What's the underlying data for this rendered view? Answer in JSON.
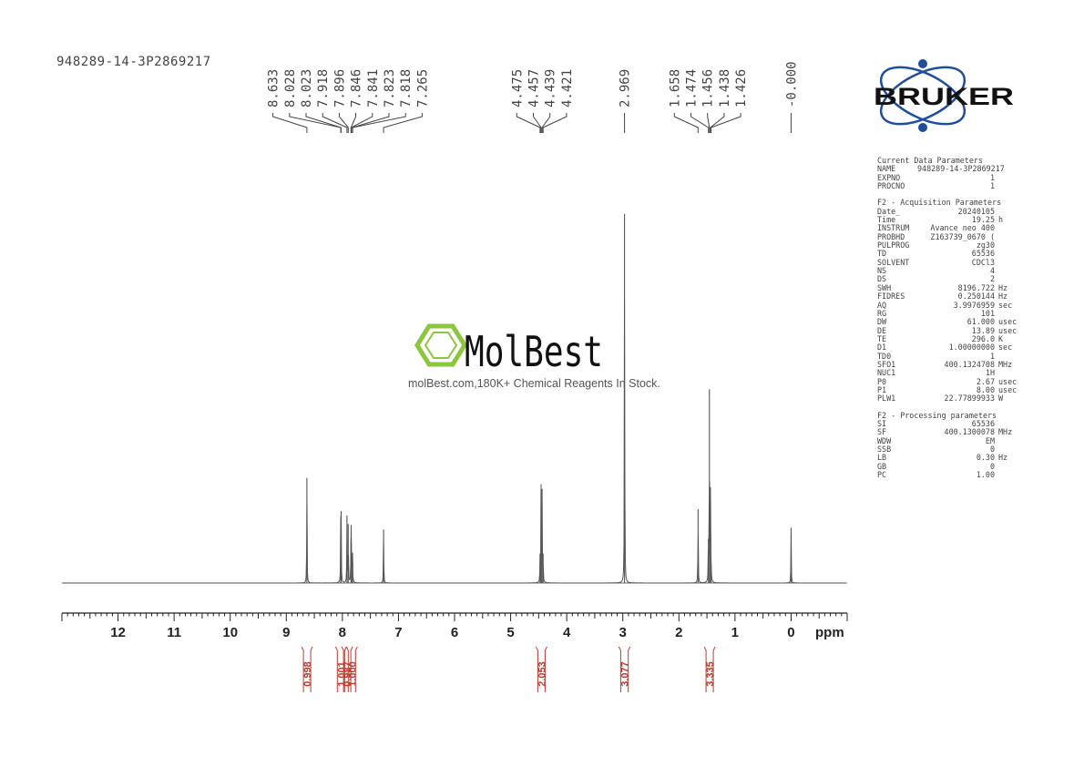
{
  "sample_name": "948289-14-3P2869217",
  "brand": {
    "logo_text": "BRUKER",
    "watermark_name": "MolBest",
    "watermark_tagline": "molBest.com,180K+ Chemical Reagents In Stock.",
    "watermark_color": "#8cc63f"
  },
  "parameters": {
    "current": {
      "title": "Current Data Parameters",
      "rows": [
        {
          "k": "NAME",
          "v": "948289-14-3P2869217",
          "u": ""
        },
        {
          "k": "EXPNO",
          "v": "1",
          "u": ""
        },
        {
          "k": "PROCNO",
          "v": "1",
          "u": ""
        }
      ]
    },
    "acquisition": {
      "title": "F2 - Acquisition Parameters",
      "rows": [
        {
          "k": "Date_",
          "v": "20240105",
          "u": ""
        },
        {
          "k": "Time",
          "v": "19.25",
          "u": "h"
        },
        {
          "k": "INSTRUM",
          "v": "Avance neo 400",
          "u": ""
        },
        {
          "k": "PROBHD",
          "v": "Z163739_0670 (",
          "u": ""
        },
        {
          "k": "PULPROG",
          "v": "zg30",
          "u": ""
        },
        {
          "k": "TD",
          "v": "65536",
          "u": ""
        },
        {
          "k": "SOLVENT",
          "v": "CDCl3",
          "u": ""
        },
        {
          "k": "NS",
          "v": "4",
          "u": ""
        },
        {
          "k": "DS",
          "v": "2",
          "u": ""
        },
        {
          "k": "SWH",
          "v": "8196.722",
          "u": "Hz"
        },
        {
          "k": "FIDRES",
          "v": "0.250144",
          "u": "Hz"
        },
        {
          "k": "AQ",
          "v": "3.9976959",
          "u": "sec"
        },
        {
          "k": "RG",
          "v": "101",
          "u": ""
        },
        {
          "k": "DW",
          "v": "61.000",
          "u": "usec"
        },
        {
          "k": "DE",
          "v": "13.89",
          "u": "usec"
        },
        {
          "k": "TE",
          "v": "296.0",
          "u": "K"
        },
        {
          "k": "D1",
          "v": "1.00000000",
          "u": "sec"
        },
        {
          "k": "TD0",
          "v": "1",
          "u": ""
        },
        {
          "k": "SFO1",
          "v": "400.1324708",
          "u": "MHz"
        },
        {
          "k": "NUC1",
          "v": "1H",
          "u": ""
        },
        {
          "k": "P0",
          "v": "2.67",
          "u": "usec"
        },
        {
          "k": "P1",
          "v": "8.00",
          "u": "usec"
        },
        {
          "k": "PLW1",
          "v": "22.77899933",
          "u": "W"
        }
      ]
    },
    "processing": {
      "title": "F2 - Processing parameters",
      "rows": [
        {
          "k": "SI",
          "v": "65536",
          "u": ""
        },
        {
          "k": "SF",
          "v": "400.1300078",
          "u": "MHz"
        },
        {
          "k": "WDW",
          "v": "EM",
          "u": ""
        },
        {
          "k": "SSB",
          "v": "0",
          "u": ""
        },
        {
          "k": "LB",
          "v": "0.30",
          "u": "Hz"
        },
        {
          "k": "GB",
          "v": "0",
          "u": ""
        },
        {
          "k": "PC",
          "v": "1.00",
          "u": ""
        }
      ]
    }
  },
  "chart_data": {
    "type": "line",
    "xlabel": "ppm",
    "xlim": [
      13.0,
      -1.0
    ],
    "x_reversed": true,
    "ticks": [
      12,
      11,
      10,
      9,
      8,
      7,
      6,
      5,
      4,
      3,
      2,
      1,
      0
    ],
    "tick_labels": [
      "12",
      "11",
      "10",
      "9",
      "8",
      "7",
      "6",
      "5",
      "4",
      "3",
      "2",
      "1",
      "0"
    ],
    "grid": false,
    "peaks": [
      {
        "ppm": 8.633,
        "height": 0.285
      },
      {
        "ppm": 8.028,
        "height": 0.178
      },
      {
        "ppm": 8.023,
        "height": 0.16
      },
      {
        "ppm": 7.918,
        "height": 0.183
      },
      {
        "ppm": 7.896,
        "height": 0.16
      },
      {
        "ppm": 7.846,
        "height": 0.122
      },
      {
        "ppm": 7.841,
        "height": 0.11
      },
      {
        "ppm": 7.823,
        "height": 0.06
      },
      {
        "ppm": 7.818,
        "height": 0.055
      },
      {
        "ppm": 7.265,
        "height": 0.145
      },
      {
        "ppm": 4.475,
        "height": 0.08
      },
      {
        "ppm": 4.457,
        "height": 0.255
      },
      {
        "ppm": 4.439,
        "height": 0.255
      },
      {
        "ppm": 4.421,
        "height": 0.08
      },
      {
        "ppm": 2.969,
        "height": 1.0
      },
      {
        "ppm": 1.658,
        "height": 0.2
      },
      {
        "ppm": 1.474,
        "height": 0.12
      },
      {
        "ppm": 1.456,
        "height": 0.525
      },
      {
        "ppm": 1.438,
        "height": 0.26
      },
      {
        "ppm": 1.426,
        "height": 0.05
      },
      {
        "ppm": 0.0,
        "height": 0.15
      }
    ],
    "peak_labels": [
      {
        "group": 1,
        "text": "8.633",
        "ppm": 8.633
      },
      {
        "group": 1,
        "text": "8.028",
        "ppm": 8.028
      },
      {
        "group": 1,
        "text": "8.023",
        "ppm": 8.023
      },
      {
        "group": 1,
        "text": "7.918",
        "ppm": 7.918
      },
      {
        "group": 1,
        "text": "7.896",
        "ppm": 7.896
      },
      {
        "group": 1,
        "text": "7.846",
        "ppm": 7.846
      },
      {
        "group": 1,
        "text": "7.841",
        "ppm": 7.841
      },
      {
        "group": 1,
        "text": "7.823",
        "ppm": 7.823
      },
      {
        "group": 1,
        "text": "7.818",
        "ppm": 7.818
      },
      {
        "group": 1,
        "text": "7.265",
        "ppm": 7.265
      },
      {
        "group": 2,
        "text": "4.475",
        "ppm": 4.475
      },
      {
        "group": 2,
        "text": "4.457",
        "ppm": 4.457
      },
      {
        "group": 2,
        "text": "4.439",
        "ppm": 4.439
      },
      {
        "group": 2,
        "text": "4.421",
        "ppm": 4.421
      },
      {
        "group": 3,
        "text": "2.969",
        "ppm": 2.969
      },
      {
        "group": 4,
        "text": "1.658",
        "ppm": 1.658
      },
      {
        "group": 4,
        "text": "1.474",
        "ppm": 1.474
      },
      {
        "group": 4,
        "text": "1.456",
        "ppm": 1.456
      },
      {
        "group": 4,
        "text": "1.438",
        "ppm": 1.438
      },
      {
        "group": 4,
        "text": "1.426",
        "ppm": 1.426
      },
      {
        "group": 5,
        "text": "-0.000",
        "ppm": 0.0
      }
    ],
    "integrals": [
      {
        "from": 8.7,
        "to": 8.56,
        "value": "0.998"
      },
      {
        "from": 8.07,
        "to": 7.98,
        "value": "1.001"
      },
      {
        "from": 7.96,
        "to": 7.87,
        "value": "0.987"
      },
      {
        "from": 7.87,
        "to": 7.79,
        "value": "1.000"
      },
      {
        "from": 4.53,
        "to": 4.37,
        "value": "2.053"
      },
      {
        "from": 3.07,
        "to": 2.87,
        "value": "3.077"
      },
      {
        "from": 1.53,
        "to": 1.37,
        "value": "3.335"
      }
    ],
    "line_color": "#555555",
    "integral_color": "#c0392b"
  }
}
